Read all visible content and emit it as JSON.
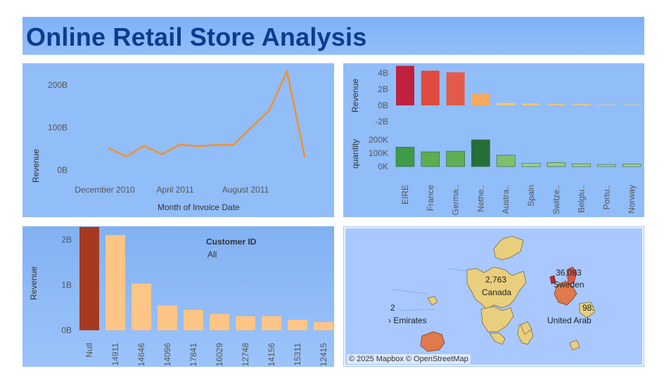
{
  "dashboard": {
    "title": "Online Retail Store Analysis"
  },
  "colors": {
    "line": "#f0922e",
    "bar_light": "#fdc586",
    "bar_dark": "#a53a20",
    "axis_text": "#555555"
  },
  "line_chart": {
    "type": "line",
    "ylabel": "Revenue",
    "xlabel": "Month of Invoice Date",
    "x_ticks": [
      "December 2010",
      "April 2011",
      "August 2011"
    ],
    "y_ticks": [
      "200B",
      "100B",
      "0B"
    ],
    "ylim": [
      0,
      240
    ],
    "values": [
      52,
      32,
      57,
      37,
      60,
      56,
      59,
      59,
      100,
      140,
      232,
      30
    ]
  },
  "country_chart": {
    "categories": [
      "EIRE",
      "France",
      "Germa..",
      "Nethe..",
      "Austra..",
      "Spain",
      "Switze..",
      "Belgiu..",
      "Portu..",
      "Norway"
    ],
    "revenue": {
      "ylabel": "Revenue",
      "ticks": [
        "4B",
        "2B",
        "0B",
        "-2B"
      ],
      "values": [
        4.9,
        4.3,
        4.1,
        1.4,
        0.3,
        0.25,
        0.15,
        0.15,
        0.08,
        0.05
      ],
      "colors": [
        "#c0213f",
        "#e04b40",
        "#e45a4a",
        "#f6a95a",
        "#f5c66b",
        "#f5c46a",
        "#f2c66c",
        "#f2c66c",
        "#f2c76d",
        "#f2c86e"
      ]
    },
    "quantity": {
      "ylabel": "quantity",
      "ticks": [
        "200K",
        "100K",
        "0K"
      ],
      "values": [
        145000,
        110000,
        115000,
        200000,
        85000,
        25000,
        30000,
        20000,
        15000,
        18000
      ],
      "colors": [
        "#3f9b4a",
        "#5cad52",
        "#5fae54",
        "#256f37",
        "#7fc06a",
        "#9fd38a",
        "#98cf84",
        "#a3d58e",
        "#a9d792",
        "#a7d691"
      ]
    }
  },
  "customer_chart": {
    "ylabel": "Revenue",
    "ticks": [
      "2B",
      "1B",
      "0B"
    ],
    "ylim": [
      0,
      2.3
    ],
    "filter_title": "Customer ID",
    "filter_value": "All",
    "categories": [
      "Null",
      "14911",
      "14646",
      "14096",
      "17841",
      "16029",
      "12748",
      "14156",
      "15311",
      "12415"
    ],
    "values": [
      2.28,
      2.1,
      1.03,
      0.55,
      0.45,
      0.36,
      0.31,
      0.31,
      0.23,
      0.18
    ]
  },
  "map": {
    "credit": "© 2025 Mapbox © OpenStreetMap",
    "labels": [
      {
        "text": "36,083"
      },
      {
        "text": "Sweden"
      },
      {
        "text": "2,763"
      },
      {
        "text": "Canada"
      },
      {
        "text": "2"
      },
      {
        "text": "› Emirates"
      },
      {
        "text": "98:"
      },
      {
        "text": "United Arab"
      }
    ]
  }
}
